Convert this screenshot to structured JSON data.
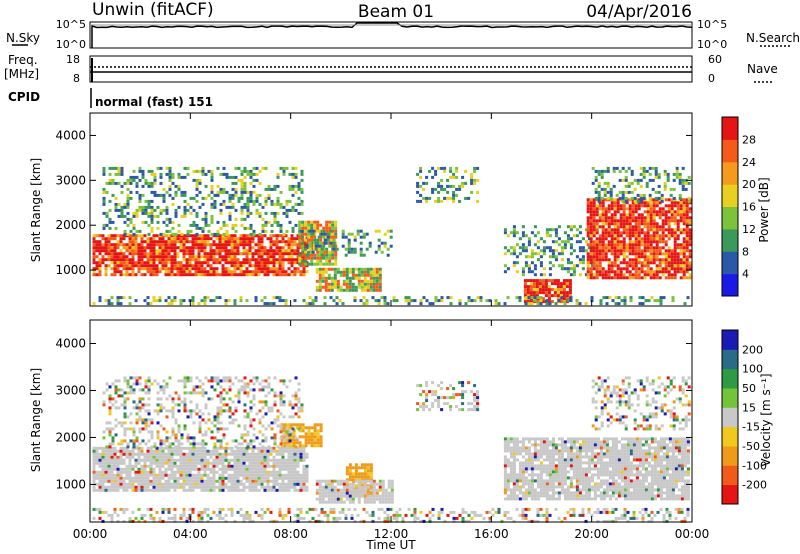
{
  "header": {
    "station": "Unwin (fitACF)",
    "beam": "Beam 01",
    "date": "04/Apr/2016"
  },
  "top_panels": {
    "nsky_label": "N.Sky",
    "nsky_ticks": [
      "10^5",
      "10^0"
    ],
    "nsearch_label": "N.Search",
    "nsearch_ticks": [
      "10^5",
      "10^0"
    ],
    "freq_label": "Freq.",
    "freq_unit": "[MHz]",
    "freq_ticks": [
      "18",
      "8"
    ],
    "nave_label": "Nave",
    "nave_ticks": [
      "60",
      "0"
    ],
    "cpid_label": "CPID",
    "cpid_text": "normal (fast) 151"
  },
  "chart_data": [
    {
      "type": "heatmap",
      "panel": "power",
      "ylabel": "Slant Range [km]",
      "yticks": [
        "1000",
        "2000",
        "3000",
        "4000"
      ],
      "ylim": [
        200,
        4500
      ],
      "xlim": [
        0,
        24
      ],
      "colorbar_label": "Power [dB]",
      "colorbar_ticks": [
        "4",
        "8",
        "12",
        "16",
        "20",
        "24",
        "28"
      ],
      "colorbar_colors": [
        "#1a1ae6",
        "#2c58a8",
        "#3a9a5a",
        "#7cc23a",
        "#e8d020",
        "#f59a1a",
        "#f45a1a",
        "#e61414"
      ],
      "regions": [
        {
          "t0": 0.1,
          "t1": 8.6,
          "r0": 900,
          "r1": 1800,
          "level": "high"
        },
        {
          "t0": 8.3,
          "t1": 9.8,
          "r0": 1100,
          "r1": 2100,
          "level": "mid"
        },
        {
          "t0": 9.0,
          "t1": 11.6,
          "r0": 550,
          "r1": 1050,
          "level": "mid"
        },
        {
          "t0": 0.5,
          "t1": 8.5,
          "r0": 1800,
          "r1": 3300,
          "level": "low"
        },
        {
          "t0": 8.6,
          "t1": 12.0,
          "r0": 1300,
          "r1": 1900,
          "level": "low"
        },
        {
          "t0": 13.0,
          "t1": 15.5,
          "r0": 2500,
          "r1": 3300,
          "level": "low"
        },
        {
          "t0": 16.5,
          "t1": 20.0,
          "r0": 900,
          "r1": 2000,
          "level": "low"
        },
        {
          "t0": 17.3,
          "t1": 19.2,
          "r0": 300,
          "r1": 800,
          "level": "high"
        },
        {
          "t0": 19.8,
          "t1": 23.9,
          "r0": 800,
          "r1": 2600,
          "level": "high"
        },
        {
          "t0": 20.0,
          "t1": 23.9,
          "r0": 2500,
          "r1": 3300,
          "level": "low"
        },
        {
          "t0": 0.1,
          "t1": 23.9,
          "r0": 220,
          "r1": 420,
          "level": "low"
        }
      ]
    },
    {
      "type": "heatmap",
      "panel": "velocity",
      "ylabel": "Slant Range [km]",
      "yticks": [
        "1000",
        "2000",
        "3000",
        "4000"
      ],
      "ylim": [
        200,
        4500
      ],
      "xlim": [
        0,
        24
      ],
      "colorbar_label": "Velocity [m s⁻¹]",
      "colorbar_ticks": [
        "200",
        "100",
        "50",
        "15",
        "-15",
        "-50",
        "-100",
        "-200"
      ],
      "colorbar_colors": [
        "#1a1ab4",
        "#2c6a8a",
        "#2e9a44",
        "#74c43a",
        "#c8c8c8",
        "#f0c81e",
        "#f09a1a",
        "#f05a1a",
        "#e61414"
      ],
      "regions": [
        {
          "t0": 0.1,
          "t1": 8.6,
          "r0": 900,
          "r1": 1800,
          "level": "gray"
        },
        {
          "t0": 7.6,
          "t1": 9.2,
          "r0": 1800,
          "r1": 2300,
          "level": "orange"
        },
        {
          "t0": 10.2,
          "t1": 11.2,
          "r0": 800,
          "r1": 1450,
          "level": "orange"
        },
        {
          "t0": 0.5,
          "t1": 8.5,
          "r0": 1800,
          "r1": 3300,
          "level": "sparse"
        },
        {
          "t0": 9.0,
          "t1": 12.0,
          "r0": 600,
          "r1": 1100,
          "level": "gray"
        },
        {
          "t0": 13.0,
          "t1": 15.5,
          "r0": 2600,
          "r1": 3200,
          "level": "sparse"
        },
        {
          "t0": 16.5,
          "t1": 23.9,
          "r0": 700,
          "r1": 2000,
          "level": "gray"
        },
        {
          "t0": 20.0,
          "t1": 23.9,
          "r0": 2200,
          "r1": 3300,
          "level": "sparse"
        },
        {
          "t0": 0.1,
          "t1": 23.9,
          "r0": 220,
          "r1": 500,
          "level": "sparse"
        }
      ]
    }
  ],
  "x_axis": {
    "ticks": [
      "00:00",
      "04:00",
      "08:00",
      "12:00",
      "16:00",
      "20:00",
      "00:00"
    ],
    "label": "Time UT"
  }
}
